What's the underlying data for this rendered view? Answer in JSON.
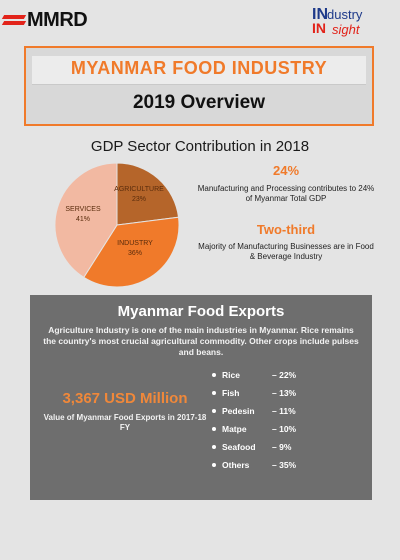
{
  "header": {
    "left_logo": "MMRD",
    "right_logo": {
      "in": "IN",
      "dustry": "dustry",
      "sight": "sight"
    }
  },
  "title": {
    "main": "MYANMAR FOOD INDUSTRY",
    "sub": "2019 Overview"
  },
  "gdp": {
    "heading": "GDP Sector Contribution in 2018",
    "slices": [
      {
        "label": "AGRICULTURE",
        "value_text": "23%",
        "value": 23,
        "color": "#b5652a"
      },
      {
        "label": "INDUSTRY",
        "value_text": "36%",
        "value": 36,
        "color": "#f07a2a"
      },
      {
        "label": "SERVICES",
        "value_text": "41%",
        "value": 41,
        "color": "#f2b9a2"
      }
    ],
    "stat1": {
      "big": "24%",
      "text": "Manufacturing and Processing contributes to 24% of Myanmar Total GDP"
    },
    "stat2": {
      "big": "Two-third",
      "text": "Majority of Manufacturing Businesses are in Food & Beverage Industry"
    }
  },
  "exports": {
    "heading": "Myanmar Food Exports",
    "intro": "Agriculture Industry is one of the main industries in Myanmar. Rice remains the country's most crucial agricultural commodity. Other crops include pulses and beans.",
    "value": "3,367 USD Million",
    "value_label": "Value of Myanmar Food Exports in 2017-18 FY",
    "items": [
      {
        "name": "Rice",
        "pct": "– 22%"
      },
      {
        "name": "Fish",
        "pct": "– 13%"
      },
      {
        "name": "Pedesin",
        "pct": "– 11%"
      },
      {
        "name": "Matpe",
        "pct": "– 10%"
      },
      {
        "name": "Seafood",
        "pct": "– 9%"
      },
      {
        "name": "Others",
        "pct": "– 35%"
      }
    ]
  }
}
